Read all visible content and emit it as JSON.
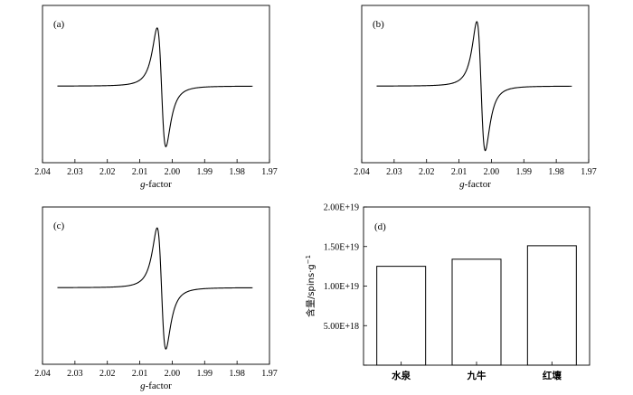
{
  "chart_data": [
    {
      "type": "line",
      "panel_label": "(a)",
      "xlabel_prefix": "g",
      "xlabel_suffix": "-factor",
      "xlim": [
        2.04,
        1.97
      ],
      "xticks": [
        "2.04",
        "2.03",
        "2.02",
        "2.01",
        "2.00",
        "1.99",
        "1.98",
        "1.97"
      ],
      "tick_values": [
        2.04,
        2.03,
        2.02,
        2.01,
        2.0,
        1.99,
        1.98,
        1.97
      ],
      "signal": {
        "center": 2.0033,
        "x_min": 2.0354,
        "x_max": 1.9752,
        "peak_x": 2.0046,
        "trough_x": 2.0019,
        "peak_up": 0.74,
        "peak_down": 0.77
      },
      "grid": false
    },
    {
      "type": "line",
      "panel_label": "(b)",
      "xlabel_prefix": "g",
      "xlabel_suffix": "-factor",
      "xlim": [
        2.04,
        1.97
      ],
      "xticks": [
        "2.04",
        "2.03",
        "2.02",
        "2.01",
        "2.00",
        "1.99",
        "1.98",
        "1.97"
      ],
      "tick_values": [
        2.04,
        2.03,
        2.02,
        2.01,
        2.0,
        1.99,
        1.98,
        1.97
      ],
      "signal": {
        "center": 2.0032,
        "x_min": 2.0354,
        "x_max": 1.9752,
        "peak_x": 2.0045,
        "trough_x": 2.0019,
        "peak_up": 0.82,
        "peak_down": 0.82
      },
      "grid": false
    },
    {
      "type": "line",
      "panel_label": "(c)",
      "xlabel_prefix": "g",
      "xlabel_suffix": "-factor",
      "xlim": [
        2.04,
        1.97
      ],
      "xticks": [
        "2.04",
        "2.03",
        "2.02",
        "2.01",
        "2.00",
        "1.99",
        "1.98",
        "1.97"
      ],
      "tick_values": [
        2.04,
        2.03,
        2.02,
        2.01,
        2.0,
        1.99,
        1.98,
        1.97
      ],
      "signal": {
        "center": 2.0033,
        "x_min": 2.0354,
        "x_max": 1.9752,
        "peak_x": 2.0046,
        "trough_x": 2.0019,
        "peak_up": 0.76,
        "peak_down": 0.78
      },
      "grid": false
    },
    {
      "type": "bar",
      "panel_label": "(d)",
      "categories": [
        "水泉",
        "九牛",
        "红壤"
      ],
      "values": [
        1.25e+19,
        1.34e+19,
        1.51e+19
      ],
      "ylabel_prefix": "含量/spins·g",
      "ylabel_sup": "−1",
      "ylim": [
        0,
        2e+19
      ],
      "ytick_values": [
        0,
        5e+18,
        1e+19,
        1.5e+19,
        2e+19
      ],
      "ytick_labels": [
        "",
        "5.00E+18",
        "1.00E+19",
        "1.50E+19",
        "2.00E+19"
      ],
      "grid": false
    }
  ]
}
